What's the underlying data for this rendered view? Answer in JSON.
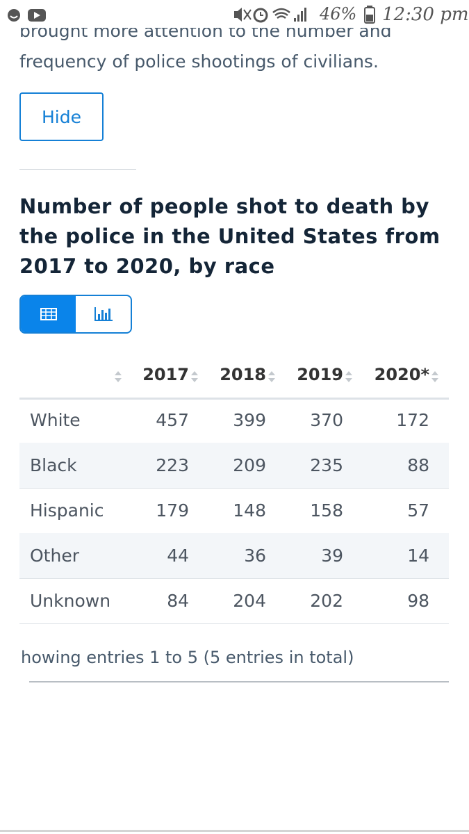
{
  "status_bar": {
    "battery": "46%",
    "time": "12:30 pm"
  },
  "article": {
    "cut_line": "brought more attention to the number and",
    "last_line": "frequency of police shootings of civilians.",
    "hide_button": "Hide"
  },
  "statistic": {
    "title": "Number of people shot to death by the police in the United States from 2017 to 2020, by race",
    "table": {
      "columns": [
        "2017",
        "2018",
        "2019",
        "2020*"
      ],
      "rows": [
        [
          "White",
          457,
          399,
          370,
          172
        ],
        [
          "Black",
          223,
          209,
          235,
          88
        ],
        [
          "Hispanic",
          179,
          148,
          158,
          57
        ],
        [
          "Other",
          44,
          36,
          39,
          14
        ],
        [
          "Unknown",
          84,
          204,
          202,
          98
        ]
      ]
    },
    "footer": "howing entries 1 to 5 (5 entries in total)"
  }
}
